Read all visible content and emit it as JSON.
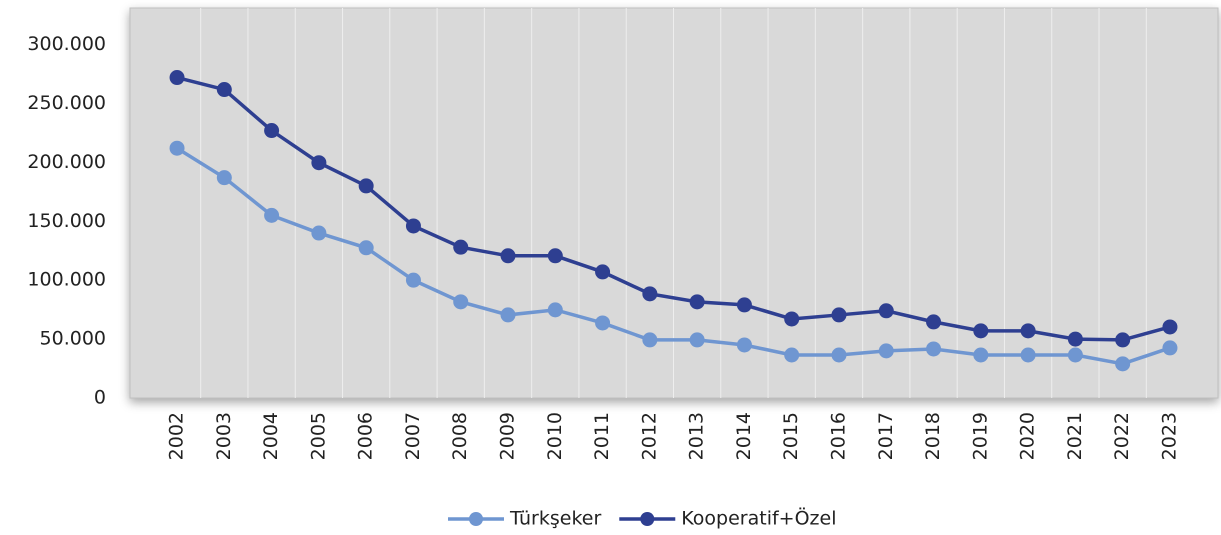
{
  "chart_data": {
    "type": "line",
    "categories": [
      "2002",
      "2003",
      "2004",
      "2005",
      "2006",
      "2007",
      "2008",
      "2009",
      "2010",
      "2011",
      "2012",
      "2013",
      "2014",
      "2015",
      "2016",
      "2017",
      "2018",
      "2019",
      "2020",
      "2021",
      "2022",
      "2023"
    ],
    "series": [
      {
        "name": "Türkşeker",
        "color": "#6f96d1",
        "values": [
          212000,
          187000,
          155000,
          140000,
          127500,
          100000,
          81600,
          70500,
          74800,
          63700,
          49300,
          49300,
          45000,
          36500,
          36500,
          40000,
          41600,
          36500,
          36500,
          36500,
          29000,
          42500
        ]
      },
      {
        "name": "Kooperatif+Özel",
        "color": "#2e3f91",
        "values": [
          272000,
          261800,
          227000,
          199700,
          180000,
          146000,
          128000,
          120700,
          120700,
          107000,
          88400,
          81600,
          79000,
          67100,
          70500,
          74000,
          64600,
          57000,
          57000,
          50000,
          49300,
          60300
        ]
      }
    ],
    "ylim": [
      0,
      331000
    ],
    "yticks": [
      0,
      {
        "value": 50000,
        "label": "50.000"
      },
      {
        "value": 100000,
        "label": "100.000"
      },
      {
        "value": 150000,
        "label": "150.000"
      },
      {
        "value": 200000,
        "label": "200.000"
      },
      {
        "value": 250000,
        "label": "250.000"
      },
      {
        "value": 300000,
        "label": "300.000"
      }
    ],
    "legend": "bottom"
  }
}
